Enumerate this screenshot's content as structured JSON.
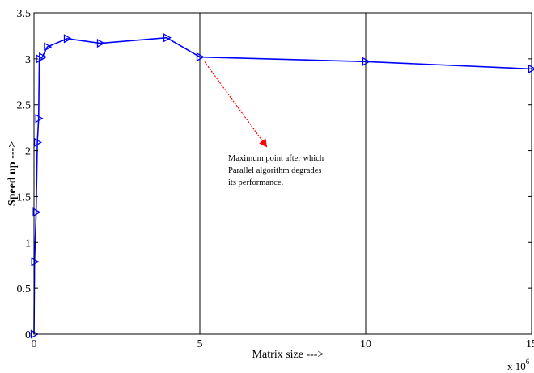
{
  "chart_data": {
    "type": "line",
    "title": "",
    "xlabel": "Matrix size --->",
    "ylabel": "Speed up --->",
    "xlim": [
      0,
      15000000
    ],
    "ylim": [
      0,
      3.5
    ],
    "x_ticks": [
      "0",
      "5",
      "10",
      "15"
    ],
    "y_ticks": [
      "0",
      "0.5",
      "1",
      "1.5",
      "2",
      "2.5",
      "3",
      "3.5"
    ],
    "x_exponent_label": "x 10",
    "x_exponent_power": "6",
    "grid": "vertical lines at x = 5, 10",
    "series": [
      {
        "color": "#0000ff",
        "marker": "right-triangle",
        "x": [
          0,
          16000,
          64000,
          100000,
          140000,
          160000,
          250000,
          400000,
          1000000,
          2000000,
          4000000,
          5000000,
          10000000,
          15000000
        ],
        "y": [
          0,
          0.79,
          1.33,
          2.09,
          2.35,
          3.0,
          3.02,
          3.13,
          3.22,
          3.17,
          3.23,
          3.02,
          2.97,
          2.89
        ]
      }
    ],
    "annotations": [
      {
        "lines": [
          "Maximum point after which",
          "Parallel algorithm degrades",
          "its performance."
        ],
        "arrow_from": [
          5000000,
          3.02
        ],
        "arrow_to": [
          7000000,
          2.05
        ],
        "arrow_color": "#ff0000"
      }
    ]
  }
}
